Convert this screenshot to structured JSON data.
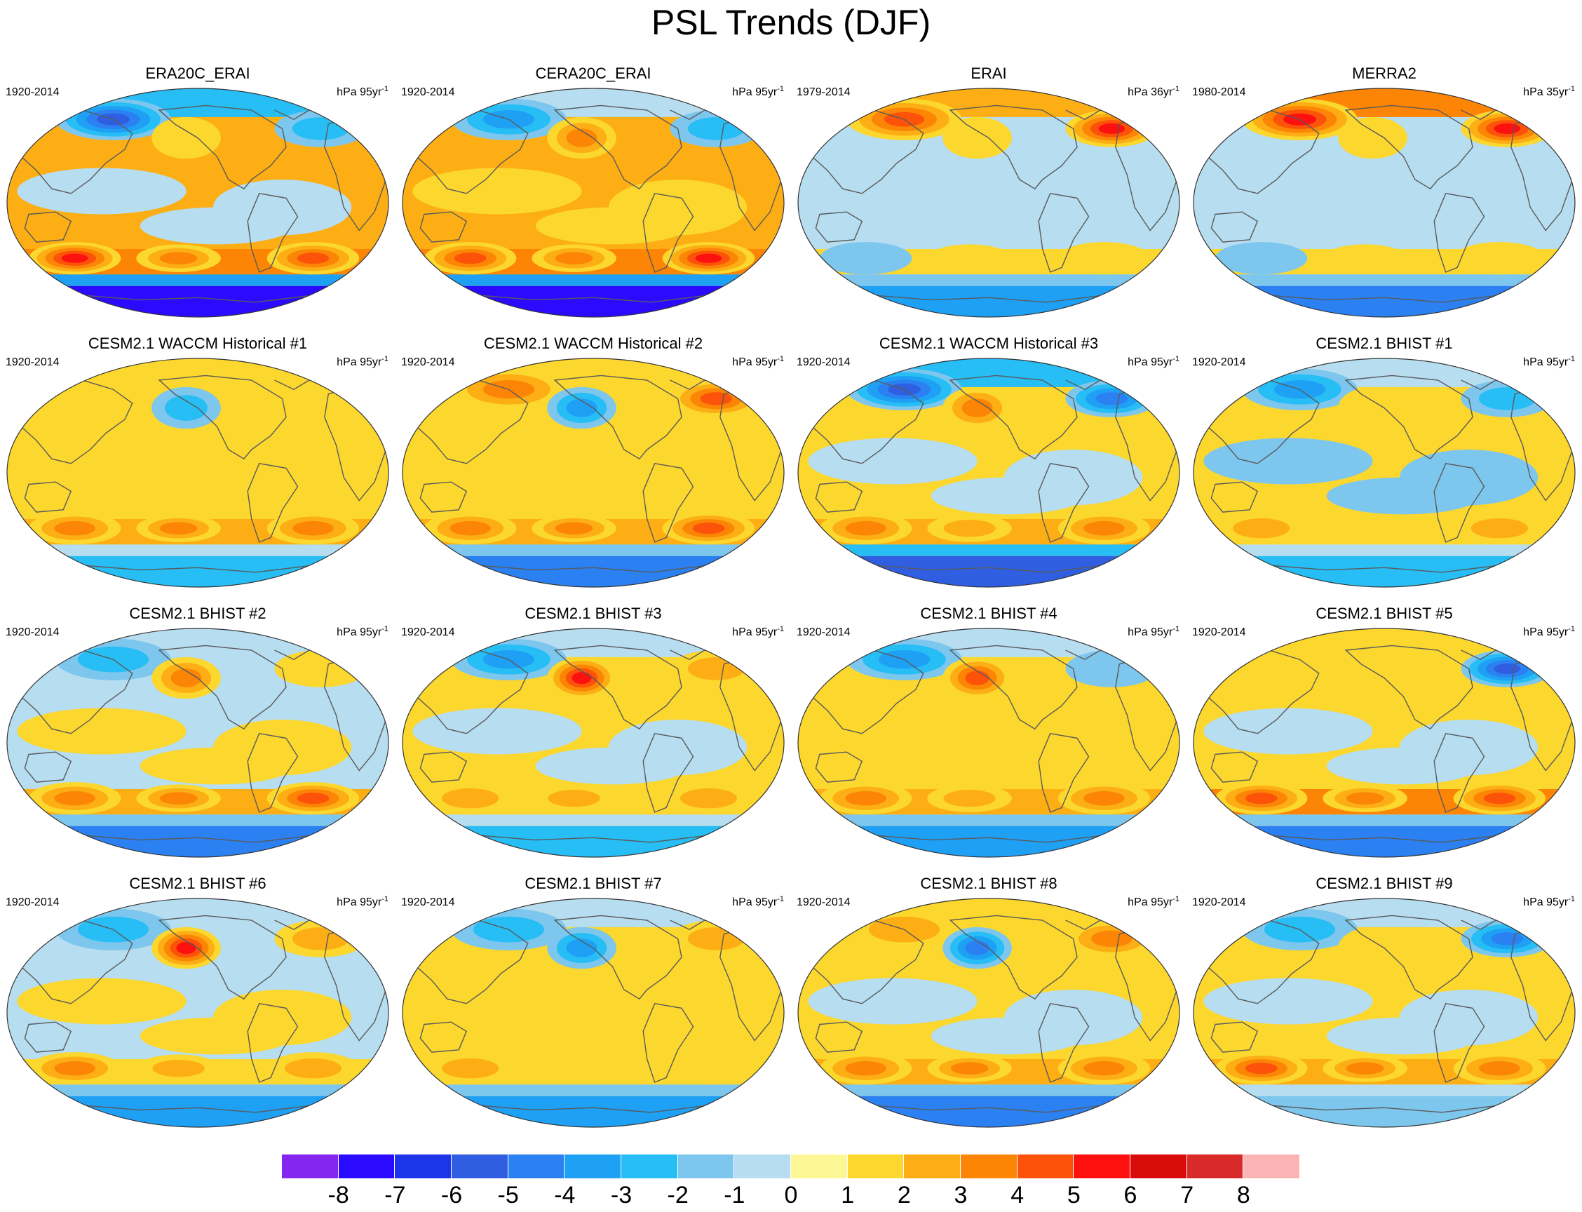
{
  "title": "PSL Trends (DJF)",
  "panels": [
    {
      "title": "ERA20C_ERAI",
      "period": "1920-2014",
      "unit_rate": "hPa 95yr",
      "unit_exp": "-1",
      "pattern": [
        -5,
        1,
        -2,
        2,
        -1,
        5,
        3,
        4,
        -8
      ]
    },
    {
      "title": "CERA20C_ERAI",
      "period": "1920-2014",
      "unit_rate": "hPa 95yr",
      "unit_exp": "-1",
      "pattern": [
        -3,
        3,
        -2,
        2,
        1,
        4,
        3,
        5,
        -8
      ]
    },
    {
      "title": "ERAI",
      "period": "1979-2014",
      "unit_rate": "hPa 36yr",
      "unit_exp": "-1",
      "pattern": [
        4,
        1,
        5,
        -1,
        -1,
        -1,
        1,
        1,
        -4
      ]
    },
    {
      "title": "MERRA2",
      "period": "1980-2014",
      "unit_rate": "hPa 35yr",
      "unit_exp": "-1",
      "pattern": [
        5,
        1,
        5,
        -1,
        -1,
        -1,
        1,
        1,
        -5
      ]
    },
    {
      "title": "CESM2.1 WACCM Historical #1",
      "period": "1920-2014",
      "unit_rate": "hPa 95yr",
      "unit_exp": "-1",
      "pattern": [
        1,
        -2,
        1,
        1,
        1,
        3,
        3,
        3,
        -3
      ]
    },
    {
      "title": "CESM2.1 WACCM Historical #2",
      "period": "1920-2014",
      "unit_rate": "hPa 95yr",
      "unit_exp": "-1",
      "pattern": [
        3,
        -3,
        4,
        1,
        1,
        3,
        3,
        4,
        -5
      ]
    },
    {
      "title": "CESM2.1 WACCM Historical #3",
      "period": "1920-2014",
      "unit_rate": "hPa 95yr",
      "unit_exp": "-1",
      "pattern": [
        -5,
        3,
        -4,
        1,
        -1,
        3,
        2,
        3,
        -6
      ]
    },
    {
      "title": "CESM2.1 BHIST #1",
      "period": "1920-2014",
      "unit_rate": "hPa 95yr",
      "unit_exp": "-1",
      "pattern": [
        -3,
        1,
        -2,
        1,
        -2,
        2,
        1,
        2,
        -3
      ]
    },
    {
      "title": "CESM2.1 BHIST #2",
      "period": "1920-2014",
      "unit_rate": "hPa 95yr",
      "unit_exp": "-1",
      "pattern": [
        -2,
        3,
        1,
        -1,
        1,
        3,
        3,
        4,
        -5
      ]
    },
    {
      "title": "CESM2.1 BHIST #3",
      "period": "1920-2014",
      "unit_rate": "hPa 95yr",
      "unit_exp": "-1",
      "pattern": [
        -3,
        5,
        2,
        1,
        -1,
        2,
        2,
        2,
        -3
      ]
    },
    {
      "title": "CESM2.1 BHIST #4",
      "period": "1920-2014",
      "unit_rate": "hPa 95yr",
      "unit_exp": "-1",
      "pattern": [
        -3,
        4,
        -1,
        1,
        1,
        3,
        2,
        3,
        -4
      ]
    },
    {
      "title": "CESM2.1 BHIST #5",
      "period": "1920-2014",
      "unit_rate": "hPa 95yr",
      "unit_exp": "-1",
      "pattern": [
        1,
        1,
        -5,
        1,
        -1,
        4,
        3,
        4,
        -5
      ]
    },
    {
      "title": "CESM2.1 BHIST #6",
      "period": "1920-2014",
      "unit_rate": "hPa 95yr",
      "unit_exp": "-1",
      "pattern": [
        -2,
        5,
        2,
        -1,
        1,
        3,
        2,
        2,
        -4
      ]
    },
    {
      "title": "CESM2.1 BHIST #7",
      "period": "1920-2014",
      "unit_rate": "hPa 95yr",
      "unit_exp": "-1",
      "pattern": [
        -2,
        -3,
        2,
        1,
        1,
        2,
        1,
        1,
        -4
      ]
    },
    {
      "title": "CESM2.1 BHIST #8",
      "period": "1920-2014",
      "unit_rate": "hPa 95yr",
      "unit_exp": "-1",
      "pattern": [
        2,
        -4,
        3,
        1,
        -1,
        3,
        3,
        3,
        -5
      ]
    },
    {
      "title": "CESM2.1 BHIST #9",
      "period": "1920-2014",
      "unit_rate": "hPa 95yr",
      "unit_exp": "-1",
      "pattern": [
        -2,
        1,
        -4,
        1,
        -1,
        4,
        3,
        3,
        -2
      ]
    }
  ],
  "colorbar": {
    "labels": [
      "-8",
      "-7",
      "-6",
      "-5",
      "-4",
      "-3",
      "-2",
      "-1",
      "0",
      "1",
      "2",
      "3",
      "4",
      "5",
      "6",
      "7",
      "8"
    ],
    "colors": [
      "#8426f0",
      "#2b0bff",
      "#1c35eb",
      "#2f5fe0",
      "#2b80f2",
      "#1ea0f5",
      "#27bdf5",
      "#7dc6ee",
      "#b6ddf0",
      "#fdf796",
      "#fcd72d",
      "#fcae14",
      "#fc8505",
      "#fc520a",
      "#fc1010",
      "#d90a0a",
      "#d92a2a",
      "#fbb4b4"
    ]
  }
}
